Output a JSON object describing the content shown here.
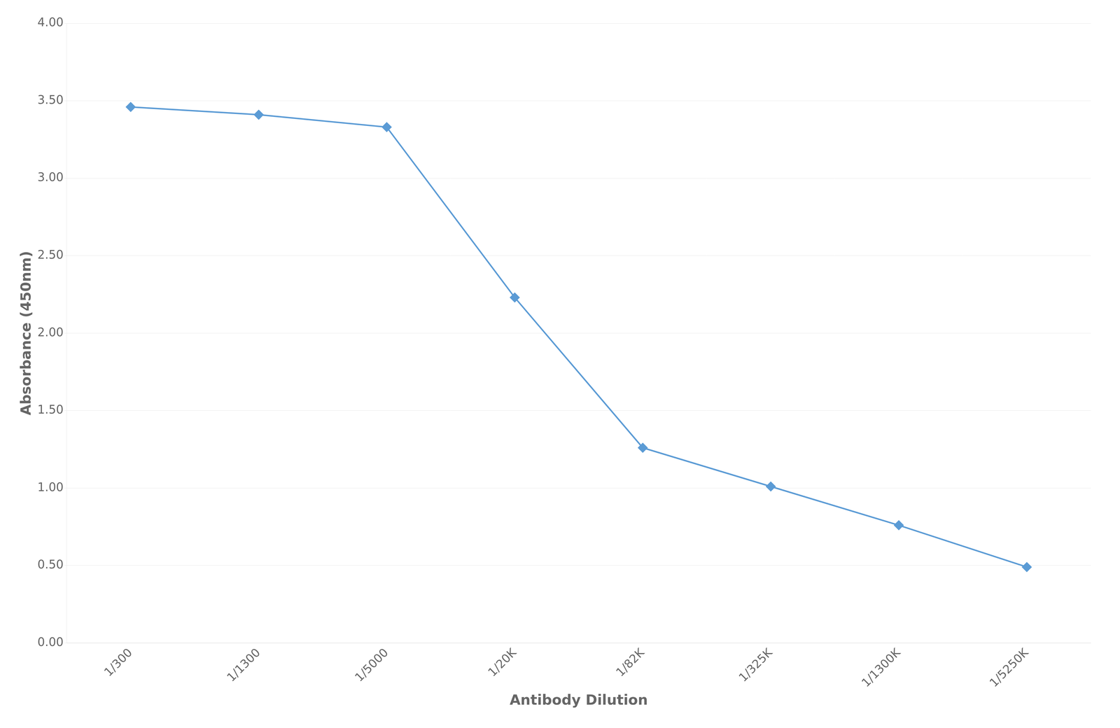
{
  "chart_data": {
    "type": "line",
    "categories": [
      "1/300",
      "1/1300",
      "1/5000",
      "1/20K",
      "1/82K",
      "1/325K",
      "1/1300K",
      "1/5250K"
    ],
    "values": [
      3.46,
      3.41,
      3.33,
      2.23,
      1.26,
      1.01,
      0.76,
      0.49
    ],
    "color": "#5B9BD5",
    "marker": "diamond",
    "xlabel": "Antibody Dilution",
    "ylabel": "Absorbance (450nm)",
    "ylim": [
      0.0,
      4.0
    ],
    "yticks": [
      {
        "value": 0.0,
        "label": "0.00"
      },
      {
        "value": 0.5,
        "label": "0.50"
      },
      {
        "value": 1.0,
        "label": "1.00"
      },
      {
        "value": 1.5,
        "label": "1.50"
      },
      {
        "value": 2.0,
        "label": "2.00"
      },
      {
        "value": 2.5,
        "label": "2.50"
      },
      {
        "value": 3.0,
        "label": "3.00"
      },
      {
        "value": 3.5,
        "label": "3.50"
      },
      {
        "value": 4.0,
        "label": "4.00"
      }
    ],
    "grid": "y"
  }
}
